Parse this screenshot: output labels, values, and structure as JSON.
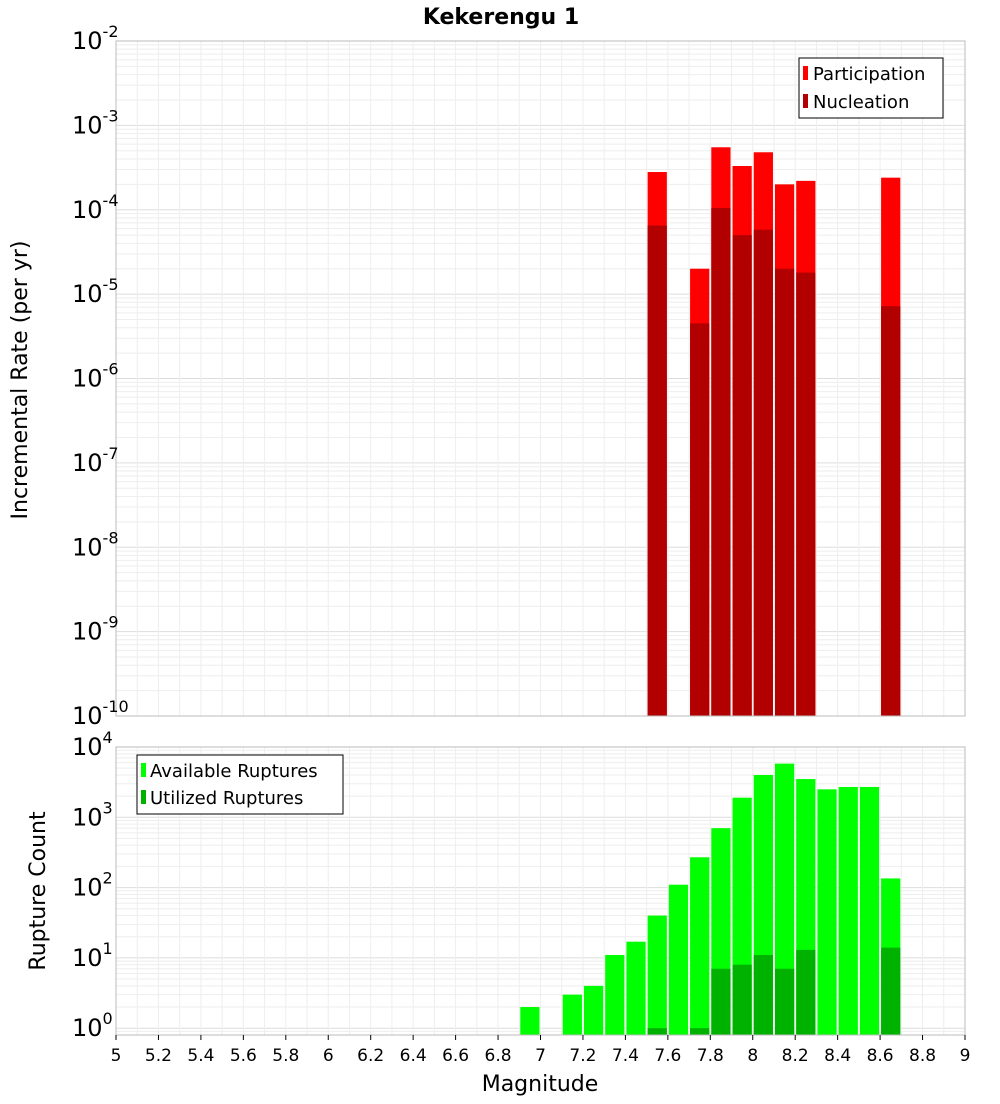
{
  "chart_data": [
    {
      "type": "bar",
      "title": "Kekerengu 1",
      "xlabel": "",
      "ylabel": "Incremental Rate (per yr)",
      "yscale": "log",
      "ylim": [
        1e-10,
        0.01
      ],
      "xlim": [
        5,
        9
      ],
      "y_ticks": [
        {
          "base": "10",
          "exp": "-10"
        },
        {
          "base": "10",
          "exp": "-9"
        },
        {
          "base": "10",
          "exp": "-8"
        },
        {
          "base": "10",
          "exp": "-7"
        },
        {
          "base": "10",
          "exp": "-6"
        },
        {
          "base": "10",
          "exp": "-5"
        },
        {
          "base": "10",
          "exp": "-4"
        },
        {
          "base": "10",
          "exp": "-3"
        },
        {
          "base": "10",
          "exp": "-2"
        }
      ],
      "legend": {
        "position": "top-right",
        "entries": [
          "Participation",
          "Nucleation"
        ]
      },
      "grid": true,
      "series": [
        {
          "name": "Participation",
          "color": "#ff0000",
          "x": [
            7.55,
            7.75,
            7.85,
            7.95,
            8.05,
            8.15,
            8.25,
            8.65
          ],
          "values": [
            0.00028,
            2e-05,
            0.00055,
            0.00033,
            0.00048,
            0.0002,
            0.00022,
            0.00024
          ]
        },
        {
          "name": "Nucleation",
          "color": "#b20000",
          "x": [
            7.55,
            7.75,
            7.85,
            7.95,
            8.05,
            8.15,
            8.25,
            8.65
          ],
          "values": [
            6.5e-05,
            4.5e-06,
            0.000105,
            5e-05,
            5.8e-05,
            2e-05,
            1.8e-05,
            7.2e-06
          ]
        }
      ]
    },
    {
      "type": "bar",
      "title": "",
      "xlabel": "Magnitude",
      "ylabel": "Rupture Count",
      "yscale": "log",
      "ylim": [
        0.8,
        10000
      ],
      "xlim": [
        5,
        9
      ],
      "x_ticks": [
        "5",
        "5.2",
        "5.4",
        "5.6",
        "5.8",
        "6",
        "6.2",
        "6.4",
        "6.6",
        "6.8",
        "7",
        "7.2",
        "7.4",
        "7.6",
        "7.8",
        "8",
        "8.2",
        "8.4",
        "8.6",
        "8.8",
        "9"
      ],
      "y_ticks": [
        {
          "base": "10",
          "exp": "0"
        },
        {
          "base": "10",
          "exp": "1"
        },
        {
          "base": "10",
          "exp": "2"
        },
        {
          "base": "10",
          "exp": "3"
        },
        {
          "base": "10",
          "exp": "4"
        }
      ],
      "legend": {
        "position": "top-left",
        "entries": [
          "Available Ruptures",
          "Utilized Ruptures"
        ]
      },
      "grid": true,
      "series": [
        {
          "name": "Available Ruptures",
          "color": "#00ff00",
          "x": [
            6.95,
            7.15,
            7.25,
            7.35,
            7.45,
            7.55,
            7.65,
            7.75,
            7.85,
            7.95,
            8.05,
            8.15,
            8.25,
            8.35,
            8.45,
            8.55,
            8.65
          ],
          "values": [
            2,
            3,
            4,
            11,
            17,
            40,
            110,
            270,
            700,
            1900,
            4000,
            5800,
            3500,
            2500,
            2700,
            2700,
            135
          ]
        },
        {
          "name": "Utilized Ruptures",
          "color": "#00b200",
          "x": [
            7.55,
            7.75,
            7.85,
            7.95,
            8.05,
            8.15,
            8.25,
            8.65
          ],
          "values": [
            1,
            1,
            7,
            8,
            11,
            7,
            13,
            14
          ]
        }
      ]
    }
  ]
}
